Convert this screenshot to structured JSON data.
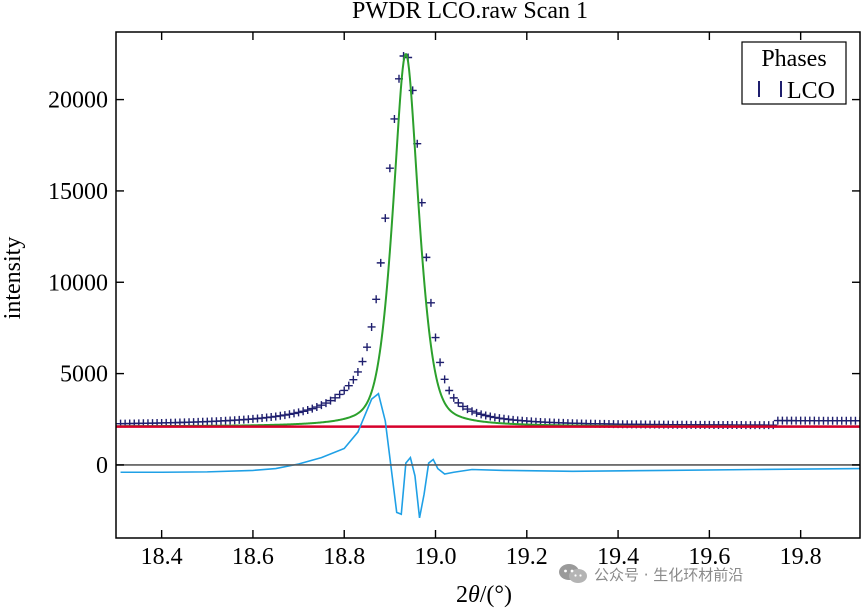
{
  "chart_data": {
    "type": "line",
    "title": "PWDR LCO.raw Scan 1",
    "xlabel_prefix": "2",
    "xlabel_theta": "θ",
    "xlabel_suffix": "/(°)",
    "ylabel": "intensity",
    "xlim": [
      18.3,
      19.93
    ],
    "ylim": [
      -4000,
      23700
    ],
    "xticks": [
      18.4,
      18.6,
      18.8,
      19.0,
      19.2,
      19.4,
      19.6,
      19.8
    ],
    "xtick_labels": [
      "18.4",
      "18.6",
      "18.8",
      "19.0",
      "19.2",
      "19.4",
      "19.6",
      "19.8"
    ],
    "yticks": [
      0,
      5000,
      10000,
      15000,
      20000
    ],
    "ytick_labels": [
      "0",
      "5000",
      "10000",
      "15000",
      "20000"
    ],
    "legend": {
      "title": "Phases",
      "entries": [
        {
          "label": "LCO",
          "marker": "tick"
        }
      ],
      "location": "top-right"
    },
    "series": [
      {
        "name": "observed",
        "style": "plus",
        "color": "#1f1f6e",
        "model": {
          "type": "pseudo-voigt-asym",
          "center": 18.935,
          "amplitude": 20400,
          "sigma": 0.035,
          "gamma_left": 0.065,
          "gamma_right": 0.042,
          "baseline": 2150,
          "x_start": 18.31,
          "x_end": 19.93,
          "step": 0.01
        }
      },
      {
        "name": "calculated",
        "style": "line",
        "color": "#2ca02c",
        "model": {
          "type": "pseudo-voigt",
          "center": 18.935,
          "amplitude": 20400,
          "sigma": 0.032,
          "gamma": 0.028,
          "baseline": 2100
        }
      },
      {
        "name": "background",
        "style": "line",
        "color": "#d6002b",
        "value": 2100
      },
      {
        "name": "difference",
        "style": "line",
        "color": "#1fa0e6",
        "x": [
          18.31,
          18.4,
          18.5,
          18.6,
          18.65,
          18.7,
          18.75,
          18.8,
          18.83,
          18.86,
          18.875,
          18.89,
          18.905,
          18.915,
          18.925,
          18.935,
          18.945,
          18.955,
          18.965,
          18.975,
          18.985,
          18.995,
          19.005,
          19.02,
          19.04,
          19.08,
          19.15,
          19.3,
          19.5,
          19.7,
          19.93
        ],
        "y": [
          -400,
          -400,
          -380,
          -300,
          -200,
          50,
          400,
          900,
          1800,
          3600,
          3900,
          2400,
          -600,
          -2600,
          -2700,
          100,
          400,
          -600,
          -2900,
          -1600,
          100,
          300,
          -200,
          -500,
          -400,
          -250,
          -300,
          -350,
          -300,
          -250,
          -200
        ]
      },
      {
        "name": "zero-line",
        "style": "line",
        "color": "#5a5a5a",
        "value": 0
      }
    ]
  },
  "watermark": {
    "text": "公众号 · 生化环材前沿"
  }
}
